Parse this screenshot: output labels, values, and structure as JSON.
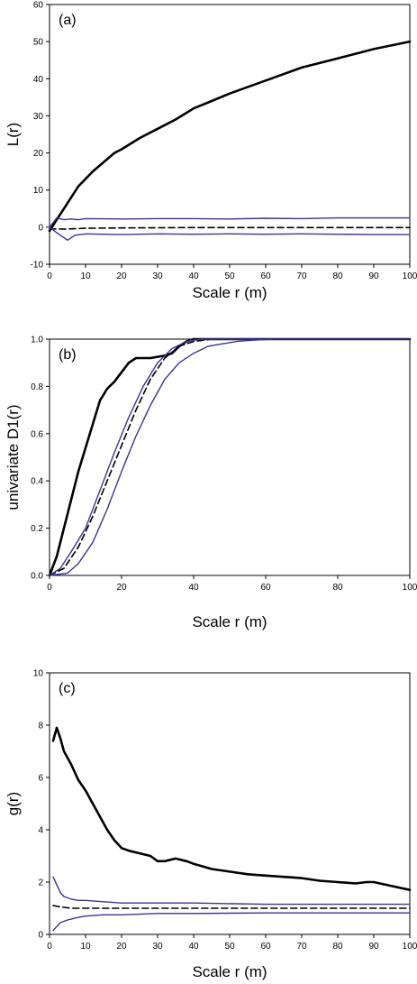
{
  "chart_data": [
    {
      "type": "line",
      "panel_label": "(a)",
      "xlabel": "Scale r (m)",
      "ylabel": "L(r)",
      "xlim": [
        0,
        100
      ],
      "ylim": [
        -10,
        60
      ],
      "xticks": [
        0,
        10,
        20,
        30,
        40,
        50,
        60,
        70,
        80,
        90,
        100
      ],
      "yticks": [
        -10,
        0,
        10,
        20,
        30,
        40,
        50,
        60
      ],
      "grid": false,
      "series": [
        {
          "style": "observed",
          "color": "#000000",
          "dash": "solid",
          "x": [
            0,
            2,
            4,
            6,
            8,
            10,
            12,
            15,
            18,
            20,
            25,
            30,
            35,
            40,
            45,
            50,
            60,
            70,
            80,
            90,
            100
          ],
          "y": [
            -1,
            2,
            5,
            8,
            11,
            13,
            15,
            17.5,
            20,
            21,
            24,
            26.5,
            29,
            32,
            34,
            36,
            39.5,
            43,
            45.5,
            48,
            50
          ]
        },
        {
          "style": "expected",
          "color": "#000000",
          "dash": "dashed",
          "x": [
            0,
            2,
            5,
            10,
            20,
            40,
            60,
            80,
            100
          ],
          "y": [
            -0.5,
            -0.5,
            -0.5,
            -0.3,
            -0.2,
            -0.1,
            -0.1,
            -0.1,
            -0.1
          ]
        },
        {
          "style": "upper envelope",
          "color": "#3a3590",
          "dash": "solid",
          "x": [
            0,
            2,
            4,
            6,
            8,
            10,
            20,
            30,
            40,
            50,
            60,
            70,
            80,
            90,
            100
          ],
          "y": [
            0,
            2.5,
            2,
            2.2,
            2,
            2.3,
            2.2,
            2.3,
            2.3,
            2.2,
            2.4,
            2.3,
            2.5,
            2.5,
            2.5
          ]
        },
        {
          "style": "lower envelope",
          "color": "#3a3590",
          "dash": "solid",
          "x": [
            0,
            2,
            5,
            7,
            10,
            20,
            30,
            40,
            50,
            60,
            70,
            80,
            90,
            100
          ],
          "y": [
            0,
            -1.5,
            -3.5,
            -2.2,
            -1.8,
            -2.0,
            -1.8,
            -1.9,
            -1.8,
            -1.9,
            -1.8,
            -1.9,
            -2.0,
            -2.0
          ]
        }
      ]
    },
    {
      "type": "line",
      "panel_label": "(b)",
      "xlabel": "Scale r (m)",
      "ylabel": "univariate D1(r)",
      "xlim": [
        0,
        100
      ],
      "ylim": [
        0,
        1
      ],
      "xticks": [
        0,
        20,
        40,
        60,
        80,
        100
      ],
      "yticks": [
        "0.0",
        "0.2",
        "0.4",
        "0.6",
        "0.8",
        "1.0"
      ],
      "grid": false,
      "series": [
        {
          "style": "observed",
          "color": "#000000",
          "dash": "solid",
          "x": [
            0,
            2,
            4,
            6,
            8,
            10,
            12,
            14,
            16,
            18,
            20,
            22,
            24,
            26,
            28,
            30,
            32,
            34,
            36,
            38,
            40,
            45,
            50,
            100
          ],
          "y": [
            0,
            0.08,
            0.2,
            0.32,
            0.44,
            0.54,
            0.64,
            0.74,
            0.79,
            0.82,
            0.86,
            0.9,
            0.92,
            0.92,
            0.92,
            0.925,
            0.93,
            0.94,
            0.97,
            0.99,
            1.0,
            1.0,
            1.0,
            1.0
          ]
        },
        {
          "style": "expected",
          "color": "#000000",
          "dash": "dashed",
          "x": [
            0,
            4,
            8,
            12,
            16,
            20,
            24,
            28,
            32,
            36,
            40,
            45,
            50,
            55,
            100
          ],
          "y": [
            0,
            0.03,
            0.12,
            0.25,
            0.4,
            0.55,
            0.7,
            0.83,
            0.92,
            0.97,
            0.99,
            1.0,
            1.0,
            1.0,
            1.0
          ]
        },
        {
          "style": "upper envelope",
          "color": "#3a3590",
          "dash": "solid",
          "x": [
            0,
            3,
            6,
            10,
            14,
            18,
            22,
            26,
            30,
            34,
            38,
            42,
            46,
            50,
            55,
            100
          ],
          "y": [
            0,
            0.03,
            0.1,
            0.2,
            0.36,
            0.52,
            0.67,
            0.8,
            0.9,
            0.96,
            0.99,
            1.0,
            1.0,
            1.0,
            1.0,
            1.0
          ]
        },
        {
          "style": "lower envelope",
          "color": "#3a3590",
          "dash": "solid",
          "x": [
            0,
            5,
            8,
            12,
            16,
            20,
            24,
            28,
            32,
            36,
            40,
            44,
            48,
            52,
            56,
            62
          ],
          "y": [
            0,
            0.01,
            0.05,
            0.14,
            0.28,
            0.44,
            0.59,
            0.72,
            0.83,
            0.9,
            0.94,
            0.97,
            0.98,
            0.99,
            0.995,
            1.0
          ]
        }
      ]
    },
    {
      "type": "line",
      "panel_label": "(c)",
      "xlabel": "Scale r (m)",
      "ylabel": "g(r)",
      "xlim": [
        0,
        100
      ],
      "ylim": [
        0,
        10
      ],
      "xticks": [
        0,
        10,
        20,
        30,
        40,
        50,
        60,
        70,
        80,
        90,
        100
      ],
      "yticks": [
        0,
        2,
        4,
        6,
        8,
        10
      ],
      "grid": false,
      "series": [
        {
          "style": "observed",
          "color": "#000000",
          "dash": "solid",
          "x": [
            1,
            2,
            3,
            4,
            6,
            8,
            10,
            12,
            14,
            16,
            18,
            20,
            22,
            25,
            28,
            30,
            32,
            35,
            38,
            40,
            45,
            50,
            55,
            60,
            65,
            70,
            75,
            80,
            85,
            88,
            90,
            95,
            100
          ],
          "y": [
            7.4,
            7.9,
            7.5,
            7.0,
            6.5,
            5.9,
            5.5,
            5.0,
            4.5,
            4.0,
            3.6,
            3.3,
            3.2,
            3.1,
            3.0,
            2.8,
            2.8,
            2.9,
            2.8,
            2.7,
            2.5,
            2.4,
            2.3,
            2.25,
            2.2,
            2.15,
            2.05,
            2.0,
            1.95,
            2.0,
            2.0,
            1.85,
            1.7
          ]
        },
        {
          "style": "expected",
          "color": "#000000",
          "dash": "dashed",
          "x": [
            1,
            3,
            6,
            10,
            20,
            40,
            60,
            80,
            100
          ],
          "y": [
            1.1,
            1.05,
            1.0,
            1.0,
            1.0,
            1.0,
            1.0,
            1.0,
            1.0
          ]
        },
        {
          "style": "upper envelope",
          "color": "#3a3590",
          "dash": "solid",
          "x": [
            1,
            2,
            3,
            4,
            6,
            8,
            10,
            15,
            20,
            30,
            40,
            60,
            80,
            100
          ],
          "y": [
            2.2,
            1.9,
            1.6,
            1.45,
            1.35,
            1.3,
            1.3,
            1.25,
            1.2,
            1.2,
            1.2,
            1.15,
            1.15,
            1.15
          ]
        },
        {
          "style": "lower envelope",
          "color": "#3a3590",
          "dash": "solid",
          "x": [
            1,
            2,
            3,
            5,
            8,
            10,
            15,
            20,
            30,
            40,
            60,
            80,
            100
          ],
          "y": [
            0.15,
            0.3,
            0.45,
            0.55,
            0.65,
            0.7,
            0.75,
            0.75,
            0.8,
            0.8,
            0.82,
            0.82,
            0.82
          ]
        }
      ]
    }
  ]
}
